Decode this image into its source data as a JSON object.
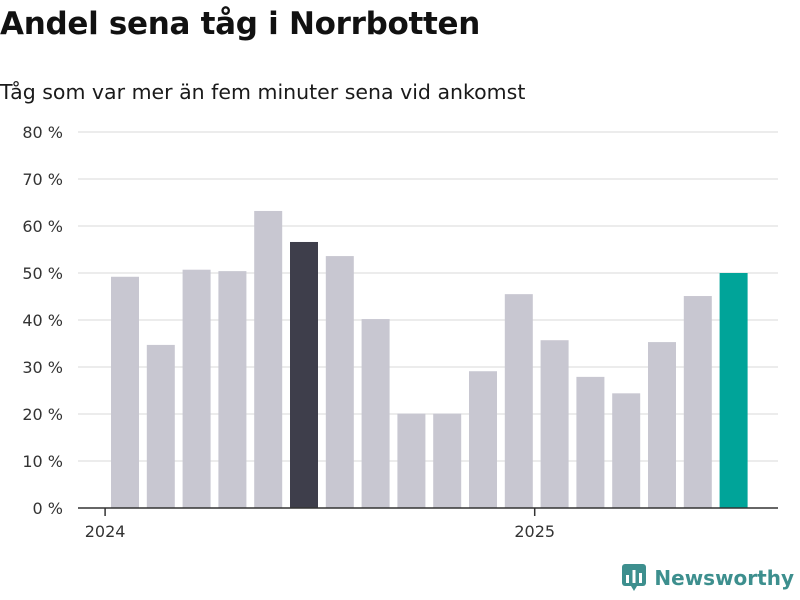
{
  "header": {
    "title": "Andel sena tåg i Norrbotten",
    "subtitle": "Tåg som var mer än fem minuter sena vid ankomst"
  },
  "brand": {
    "name": "Newsworthy",
    "icon": "newsworthy-logo-icon",
    "color": "#3d8f8e"
  },
  "colors": {
    "bar_default": "#c8c7d1",
    "bar_highlight_dark": "#3e3e4b",
    "bar_highlight_latest": "#00a499",
    "grid": "#d9d9d9",
    "axis": "#333333"
  },
  "chart_data": {
    "type": "bar",
    "title": "Andel sena tåg i Norrbotten",
    "subtitle": "Tåg som var mer än fem minuter sena vid ankomst",
    "ylim": [
      0,
      80
    ],
    "yticks": [
      0,
      10,
      20,
      30,
      40,
      50,
      60,
      70,
      80
    ],
    "ytick_labels": [
      "0 %",
      "10 %",
      "20 %",
      "30 %",
      "40 %",
      "50 %",
      "60 %",
      "70 %",
      "80 %"
    ],
    "unit": "%",
    "x_start": "2024-01",
    "x_end": "2025-06",
    "xtick_labels": [
      "2024",
      "2025"
    ],
    "grid": true,
    "values": [
      49.2,
      34.7,
      50.7,
      50.4,
      63.2,
      56.6,
      53.6,
      40.2,
      20.1,
      20.1,
      29.1,
      45.5,
      35.7,
      27.9,
      24.4,
      35.3,
      45.1,
      50.0
    ],
    "highlight": [
      {
        "index": 5,
        "color": "#3e3e4b"
      },
      {
        "index": 17,
        "color": "#00a499"
      }
    ]
  }
}
